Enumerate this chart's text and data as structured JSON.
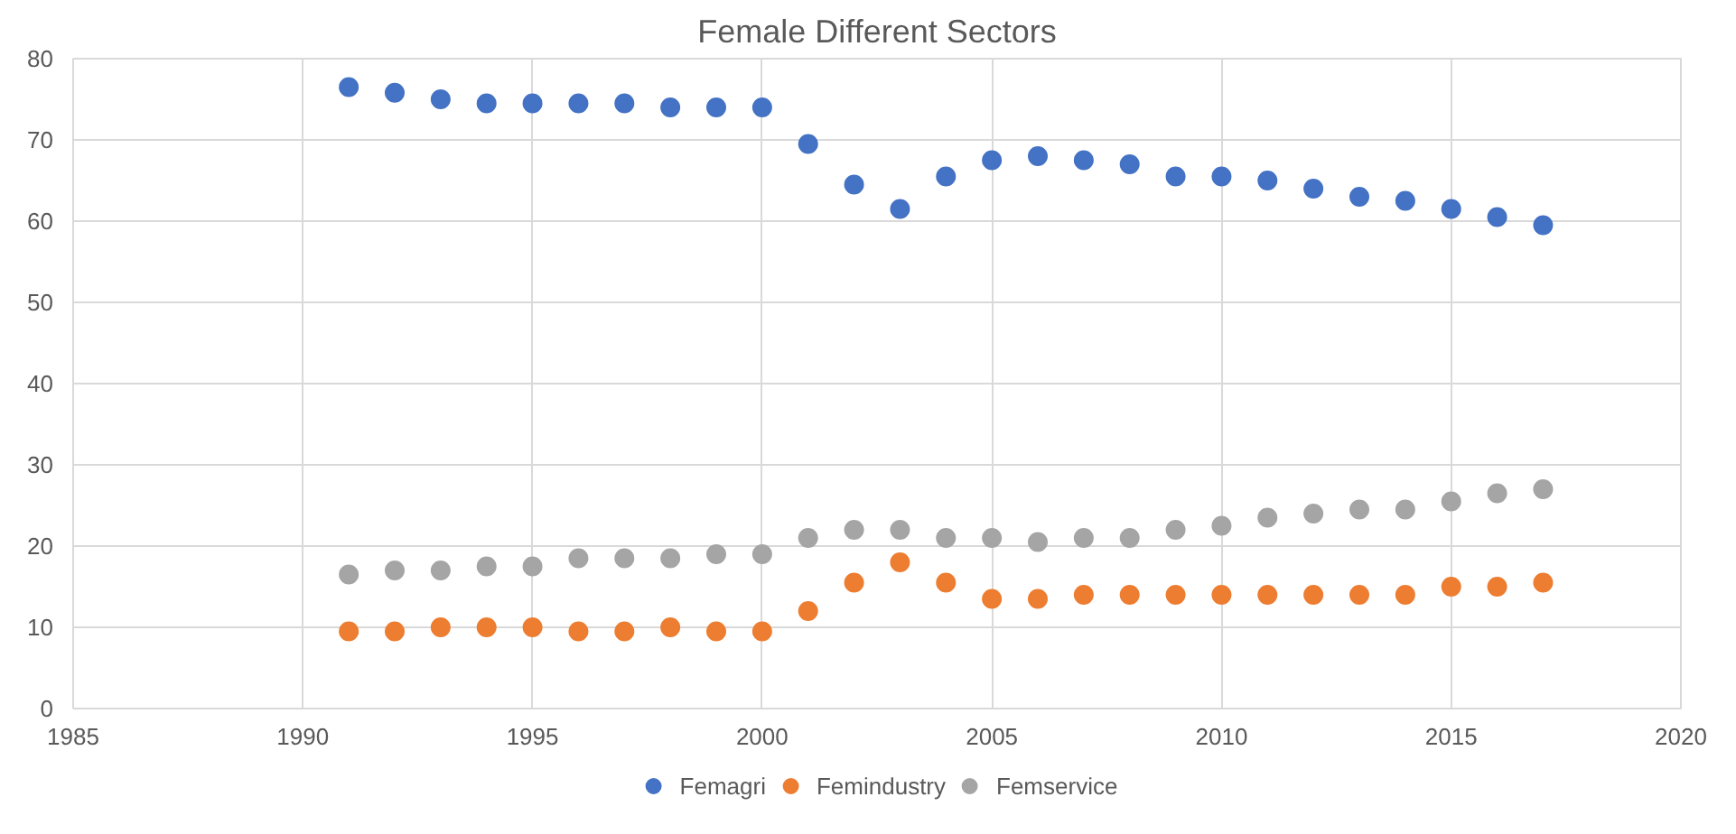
{
  "chart_data": {
    "type": "scatter",
    "title": "Female Different Sectors",
    "x": [
      1991,
      1992,
      1993,
      1994,
      1995,
      1996,
      1997,
      1998,
      1999,
      2000,
      2001,
      2002,
      2003,
      2004,
      2005,
      2006,
      2007,
      2008,
      2009,
      2010,
      2011,
      2012,
      2013,
      2014,
      2015,
      2016,
      2017
    ],
    "series": [
      {
        "name": "Femagri",
        "color": "#4472c4",
        "values": [
          76.5,
          75.8,
          75,
          74.5,
          74.5,
          74.5,
          74.5,
          74,
          74,
          74,
          69.5,
          64.5,
          61.5,
          65.5,
          67.5,
          68,
          67.5,
          67,
          65.5,
          65.5,
          65,
          64,
          63,
          62.5,
          61.5,
          60.5,
          59.5
        ]
      },
      {
        "name": "Femindustry",
        "color": "#ed7d31",
        "values": [
          9.5,
          9.5,
          10,
          10,
          10,
          9.5,
          9.5,
          10,
          9.5,
          9.5,
          12,
          15.5,
          18,
          15.5,
          13.5,
          13.5,
          14,
          14,
          14,
          14,
          14,
          14,
          14,
          14,
          15,
          15,
          15.5
        ]
      },
      {
        "name": "Femservice",
        "color": "#a5a5a5",
        "values": [
          16.5,
          17,
          17,
          17.5,
          17.5,
          18.5,
          18.5,
          18.5,
          19,
          19,
          21,
          22,
          22,
          21,
          21,
          20.5,
          21,
          21,
          22,
          22.5,
          23.5,
          24,
          24.5,
          24.5,
          25.5,
          26.5,
          27
        ]
      }
    ],
    "xlim": [
      1985,
      2020
    ],
    "xticks": [
      1985,
      1990,
      1995,
      2000,
      2005,
      2010,
      2015,
      2020
    ],
    "ylim": [
      0,
      80
    ],
    "yticks": [
      0,
      10,
      20,
      30,
      40,
      50,
      60,
      70,
      80
    ],
    "grid": true,
    "legend": "bottom",
    "marker": "circle"
  }
}
